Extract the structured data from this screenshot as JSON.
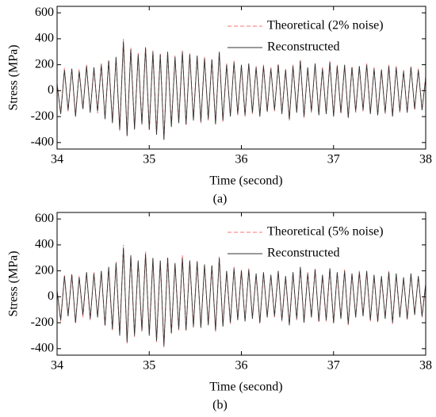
{
  "chart_data": [
    {
      "type": "line",
      "ylabel": "Stress (MPa)",
      "xlabel": "Time (second)",
      "caption": "(a)",
      "xlim": [
        34,
        38
      ],
      "xticks": [
        34,
        35,
        36,
        37,
        38
      ],
      "ylim": [
        -450,
        650
      ],
      "yticks": [
        -400,
        -200,
        0,
        200,
        400,
        600
      ],
      "legend": "upper-right",
      "x": [
        34,
        34.04,
        34.08,
        34.12,
        34.16,
        34.2,
        34.24,
        34.28,
        34.32,
        34.36,
        34.4,
        34.44,
        34.48,
        34.52,
        34.56,
        34.6,
        34.64,
        34.68,
        34.72,
        34.76,
        34.8,
        34.84,
        34.88,
        34.92,
        34.96,
        35,
        35.04,
        35.08,
        35.12,
        35.16,
        35.2,
        35.24,
        35.28,
        35.32,
        35.36,
        35.4,
        35.44,
        35.48,
        35.52,
        35.56,
        35.6,
        35.64,
        35.68,
        35.72,
        35.76,
        35.8,
        35.84,
        35.88,
        35.92,
        35.96,
        36,
        36.04,
        36.08,
        36.12,
        36.16,
        36.2,
        36.24,
        36.28,
        36.32,
        36.36,
        36.4,
        36.44,
        36.48,
        36.52,
        36.56,
        36.6,
        36.64,
        36.68,
        36.72,
        36.76,
        36.8,
        36.84,
        36.88,
        36.92,
        36.96,
        37,
        37.04,
        37.08,
        37.12,
        37.16,
        37.2,
        37.24,
        37.28,
        37.32,
        37.36,
        37.4,
        37.44,
        37.48,
        37.52,
        37.56,
        37.6,
        37.64,
        37.68,
        37.72,
        37.76,
        37.8,
        37.84,
        37.88,
        37.92,
        37.96,
        38
      ],
      "series": [
        {
          "name": "Theoretical (2% noise)",
          "color": "#ff7070",
          "dashed": true,
          "values": [
            60,
            -170,
            175,
            -160,
            160,
            -190,
            165,
            -150,
            200,
            -160,
            170,
            -175,
            210,
            -210,
            240,
            -240,
            250,
            -310,
            400,
            -340,
            330,
            -290,
            290,
            -250,
            340,
            -310,
            310,
            -330,
            290,
            -370,
            290,
            -270,
            270,
            -240,
            310,
            -270,
            290,
            -220,
            260,
            -250,
            260,
            -230,
            250,
            -250,
            290,
            -240,
            210,
            -190,
            230,
            -190,
            190,
            -200,
            200,
            -180,
            190,
            -190,
            200,
            -170,
            180,
            -160,
            210,
            -170,
            170,
            -230,
            200,
            -160,
            240,
            -210,
            170,
            -170,
            200,
            -180,
            180,
            -170,
            230,
            -190,
            200,
            -180,
            190,
            -200,
            190,
            -170,
            180,
            -160,
            210,
            -170,
            180,
            -180,
            170,
            -180,
            200,
            -190,
            190,
            -170,
            160,
            -160,
            190,
            -150,
            170,
            -140,
            110
          ]
        },
        {
          "name": "Reconstructed",
          "color": "#333333",
          "dashed": false,
          "values": [
            50,
            -180,
            160,
            -150,
            170,
            -200,
            150,
            -140,
            190,
            -170,
            180,
            -160,
            200,
            -220,
            230,
            -250,
            260,
            -300,
            380,
            -350,
            320,
            -300,
            280,
            -260,
            330,
            -300,
            300,
            -340,
            280,
            -380,
            300,
            -280,
            260,
            -250,
            300,
            -260,
            280,
            -230,
            270,
            -240,
            250,
            -220,
            240,
            -260,
            300,
            -230,
            200,
            -200,
            220,
            -180,
            200,
            -190,
            210,
            -170,
            180,
            -200,
            190,
            -160,
            170,
            -150,
            200,
            -180,
            160,
            -220,
            190,
            -170,
            230,
            -200,
            180,
            -160,
            210,
            -190,
            170,
            -180,
            220,
            -200,
            190,
            -170,
            200,
            -210,
            180,
            -160,
            190,
            -150,
            200,
            -180,
            170,
            -190,
            160,
            -170,
            190,
            -200,
            180,
            -160,
            150,
            -170,
            180,
            -140,
            160,
            -150,
            100
          ]
        }
      ]
    },
    {
      "type": "line",
      "ylabel": "Stress (MPa)",
      "xlabel": "Time (second)",
      "caption": "(b)",
      "xlim": [
        34,
        38
      ],
      "xticks": [
        34,
        35,
        36,
        37,
        38
      ],
      "ylim": [
        -450,
        650
      ],
      "yticks": [
        -400,
        -200,
        0,
        200,
        400,
        600
      ],
      "legend": "upper-right",
      "x": [
        34,
        34.04,
        34.08,
        34.12,
        34.16,
        34.2,
        34.24,
        34.28,
        34.32,
        34.36,
        34.4,
        34.44,
        34.48,
        34.52,
        34.56,
        34.6,
        34.64,
        34.68,
        34.72,
        34.76,
        34.8,
        34.84,
        34.88,
        34.92,
        34.96,
        35,
        35.04,
        35.08,
        35.12,
        35.16,
        35.2,
        35.24,
        35.28,
        35.32,
        35.36,
        35.4,
        35.44,
        35.48,
        35.52,
        35.56,
        35.6,
        35.64,
        35.68,
        35.72,
        35.76,
        35.8,
        35.84,
        35.88,
        35.92,
        35.96,
        36,
        36.04,
        36.08,
        36.12,
        36.16,
        36.2,
        36.24,
        36.28,
        36.32,
        36.36,
        36.4,
        36.44,
        36.48,
        36.52,
        36.56,
        36.6,
        36.64,
        36.68,
        36.72,
        36.76,
        36.8,
        36.84,
        36.88,
        36.92,
        36.96,
        37,
        37.04,
        37.08,
        37.12,
        37.16,
        37.2,
        37.24,
        37.28,
        37.32,
        37.36,
        37.4,
        37.44,
        37.48,
        37.52,
        37.56,
        37.6,
        37.64,
        37.68,
        37.72,
        37.76,
        37.8,
        37.84,
        37.88,
        37.92,
        37.96,
        38
      ],
      "series": [
        {
          "name": "Theoretical (5% noise)",
          "color": "#ff7070",
          "dashed": true,
          "values": [
            40,
            -190,
            170,
            -140,
            180,
            -210,
            160,
            -160,
            180,
            -180,
            190,
            -150,
            190,
            -230,
            220,
            -260,
            270,
            -290,
            400,
            -360,
            310,
            -310,
            270,
            -270,
            350,
            -290,
            290,
            -350,
            270,
            -390,
            310,
            -290,
            250,
            -260,
            320,
            -250,
            270,
            -240,
            280,
            -230,
            240,
            -210,
            250,
            -270,
            310,
            -220,
            190,
            -210,
            230,
            -170,
            210,
            -180,
            220,
            -160,
            170,
            -210,
            180,
            -150,
            160,
            -160,
            190,
            -190,
            150,
            -210,
            180,
            -180,
            220,
            -190,
            190,
            -150,
            220,
            -200,
            160,
            -190,
            210,
            -210,
            180,
            -160,
            210,
            -220,
            170,
            -150,
            200,
            -140,
            190,
            -190,
            160,
            -200,
            150,
            -160,
            200,
            -210,
            170,
            -150,
            140,
            -180,
            170,
            -130,
            150,
            -160,
            90
          ]
        },
        {
          "name": "Reconstructed",
          "color": "#333333",
          "dashed": false,
          "values": [
            50,
            -180,
            160,
            -150,
            170,
            -200,
            150,
            -140,
            190,
            -170,
            180,
            -160,
            200,
            -220,
            230,
            -250,
            260,
            -300,
            380,
            -350,
            320,
            -300,
            280,
            -260,
            330,
            -300,
            300,
            -340,
            280,
            -380,
            300,
            -280,
            260,
            -250,
            300,
            -260,
            280,
            -230,
            270,
            -240,
            250,
            -220,
            240,
            -260,
            300,
            -230,
            200,
            -200,
            220,
            -180,
            200,
            -190,
            210,
            -170,
            180,
            -200,
            190,
            -160,
            170,
            -150,
            200,
            -180,
            160,
            -220,
            190,
            -170,
            230,
            -200,
            180,
            -160,
            210,
            -190,
            170,
            -180,
            220,
            -200,
            190,
            -170,
            200,
            -210,
            180,
            -160,
            190,
            -150,
            200,
            -180,
            170,
            -190,
            160,
            -170,
            190,
            -200,
            180,
            -160,
            150,
            -170,
            180,
            -140,
            160,
            -150,
            100
          ]
        }
      ]
    }
  ]
}
